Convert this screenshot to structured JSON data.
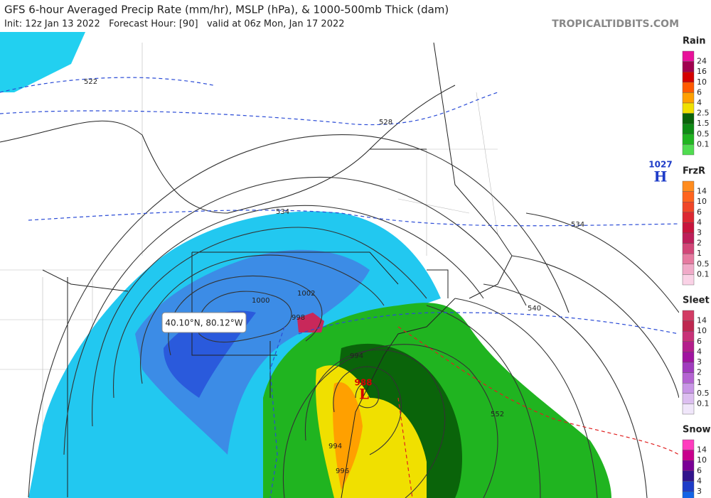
{
  "header": {
    "title": "GFS 6-hour Averaged Precip Rate (mm/hr), MSLP (hPa), & 1000-500mb Thick (dam)",
    "subtitle": "Init: 12z Jan 13 2022   Forecast Hour: [90]   valid at 06z Mon, Jan 17 2022",
    "watermark": "TROPICALTIDBITS.COM"
  },
  "legend": [
    {
      "title": "Rain",
      "labels": [
        "24",
        "16",
        "10",
        "6",
        "4",
        "2.5",
        "1.5",
        "0.5",
        "0.1"
      ],
      "colors": [
        "#e8129a",
        "#a0004e",
        "#d40000",
        "#ff5a00",
        "#ffa000",
        "#f0e000",
        "#0a640a",
        "#0e8c14",
        "#20b420",
        "#50dc50"
      ]
    },
    {
      "title": "FrzR",
      "labels": [
        "14",
        "10",
        "6",
        "4",
        "3",
        "2",
        "1",
        "0.5",
        "0.1"
      ],
      "colors": [
        "#ff8c1e",
        "#ff641e",
        "#f04628",
        "#dc2832",
        "#c8143c",
        "#be1e5a",
        "#d24678",
        "#e67aa0",
        "#f0aac8",
        "#fad2e6"
      ]
    },
    {
      "title": "Sleet",
      "labels": [
        "14",
        "10",
        "6",
        "4",
        "3",
        "2",
        "1",
        "0.5",
        "0.1"
      ],
      "colors": [
        "#d23c64",
        "#be2850",
        "#c83278",
        "#b41e8c",
        "#a014a0",
        "#a03cbe",
        "#b464d2",
        "#c896e6",
        "#dcbef0",
        "#f0e6fa"
      ]
    },
    {
      "title": "Snow",
      "labels": [
        "14",
        "10",
        "6",
        "4",
        "3"
      ],
      "colors": [
        "#ff3cbe",
        "#c8008c",
        "#7a0096",
        "#32148c",
        "#1e3cc8",
        "#1464e6"
      ]
    }
  ],
  "map": {
    "contour_labels": [
      "522",
      "528",
      "534",
      "534",
      "540",
      "552",
      "1000",
      "1002",
      "998",
      "994",
      "994",
      "996"
    ],
    "high": {
      "pressure": "1027",
      "symbol": "H"
    },
    "low": {
      "pressure": "988",
      "symbol": "L"
    },
    "tooltip": "40.10°N, 80.12°W"
  }
}
